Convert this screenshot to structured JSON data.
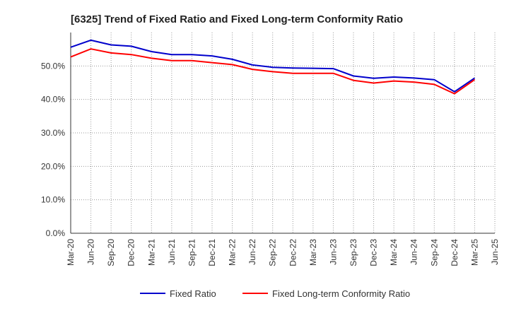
{
  "chart_data": {
    "type": "line",
    "title": "[6325]  Trend of Fixed Ratio and Fixed Long-term Conformity Ratio",
    "xlabel": "",
    "ylabel": "",
    "ylim": [
      0,
      0.6
    ],
    "yticks": [
      "0.0%",
      "10.0%",
      "20.0%",
      "30.0%",
      "40.0%",
      "50.0%"
    ],
    "x_tick_labels": [
      "Mar-20",
      "Jun-20",
      "Sep-20",
      "Dec-20",
      "Mar-21",
      "Jun-21",
      "Sep-21",
      "Dec-21",
      "Mar-22",
      "Jun-22",
      "Sep-22",
      "Dec-22",
      "Mar-23",
      "Jun-23",
      "Sep-23",
      "Dec-23",
      "Mar-24",
      "Jun-24",
      "Sep-24",
      "Dec-24",
      "Mar-25",
      "Jun-25"
    ],
    "x": [
      "Mar-20",
      "Jun-20",
      "Sep-20",
      "Dec-20",
      "Mar-21",
      "Jun-21",
      "Sep-21",
      "Dec-21",
      "Mar-22",
      "Jun-22",
      "Sep-22",
      "Dec-22",
      "Mar-23",
      "Jun-23",
      "Sep-23",
      "Dec-23",
      "Mar-24",
      "Jun-24",
      "Sep-24",
      "Dec-24",
      "Mar-25"
    ],
    "grid": true,
    "legend_position": "bottom",
    "series": [
      {
        "name": "Fixed Ratio",
        "color": "#0000cc",
        "values": [
          0.556,
          0.577,
          0.563,
          0.559,
          0.543,
          0.534,
          0.534,
          0.53,
          0.52,
          0.503,
          0.496,
          0.494,
          0.493,
          0.492,
          0.47,
          0.463,
          0.467,
          0.464,
          0.459,
          0.423,
          0.464
        ]
      },
      {
        "name": "Fixed Long-term Conformity Ratio",
        "color": "#ff0000",
        "values": [
          0.527,
          0.551,
          0.539,
          0.534,
          0.523,
          0.516,
          0.516,
          0.51,
          0.504,
          0.49,
          0.483,
          0.478,
          0.478,
          0.478,
          0.457,
          0.449,
          0.455,
          0.452,
          0.445,
          0.417,
          0.459
        ]
      }
    ]
  }
}
